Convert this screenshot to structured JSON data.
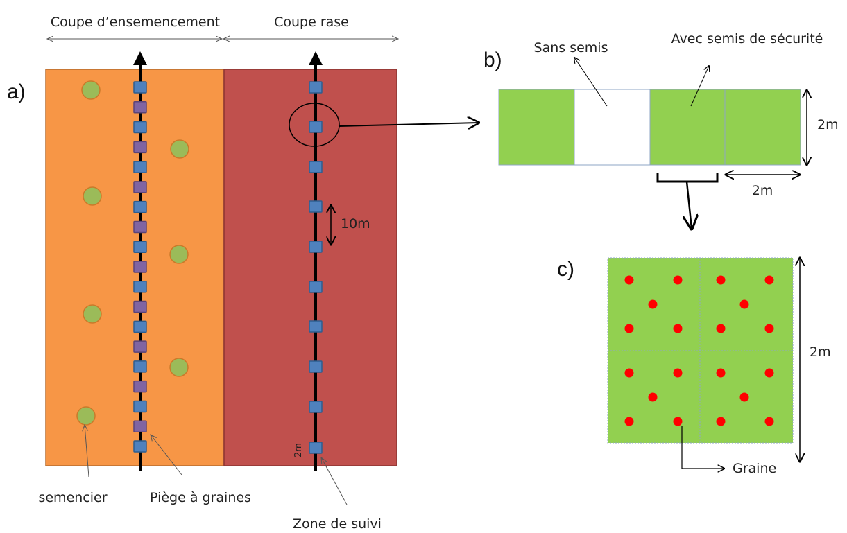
{
  "colors": {
    "orange_zone": "#f79646",
    "red_zone": "#c0504d",
    "seed_tree": "#9bbb59",
    "seed_trap": "#8064a2",
    "monitor_zone": "#4f81bd",
    "green_plot": "#92d050",
    "seed_dot": "#ff0000"
  },
  "panel_a": {
    "label": "a)",
    "header_left": "Coupe d’ensemencement",
    "header_right": "Coupe rase",
    "spacing_label": "10m",
    "small_label": "2m",
    "label_semencier": "semencier",
    "label_piege": "Piège à graines",
    "label_zone": "Zone de suivi"
  },
  "panel_b": {
    "label": "b)",
    "label_sans": "Sans semis",
    "label_avec": "Avec semis de sécurité",
    "dim_height": "2m",
    "dim_width": "2m"
  },
  "panel_c": {
    "label": "c)",
    "dim_height": "2m",
    "label_graine": "Graine"
  }
}
